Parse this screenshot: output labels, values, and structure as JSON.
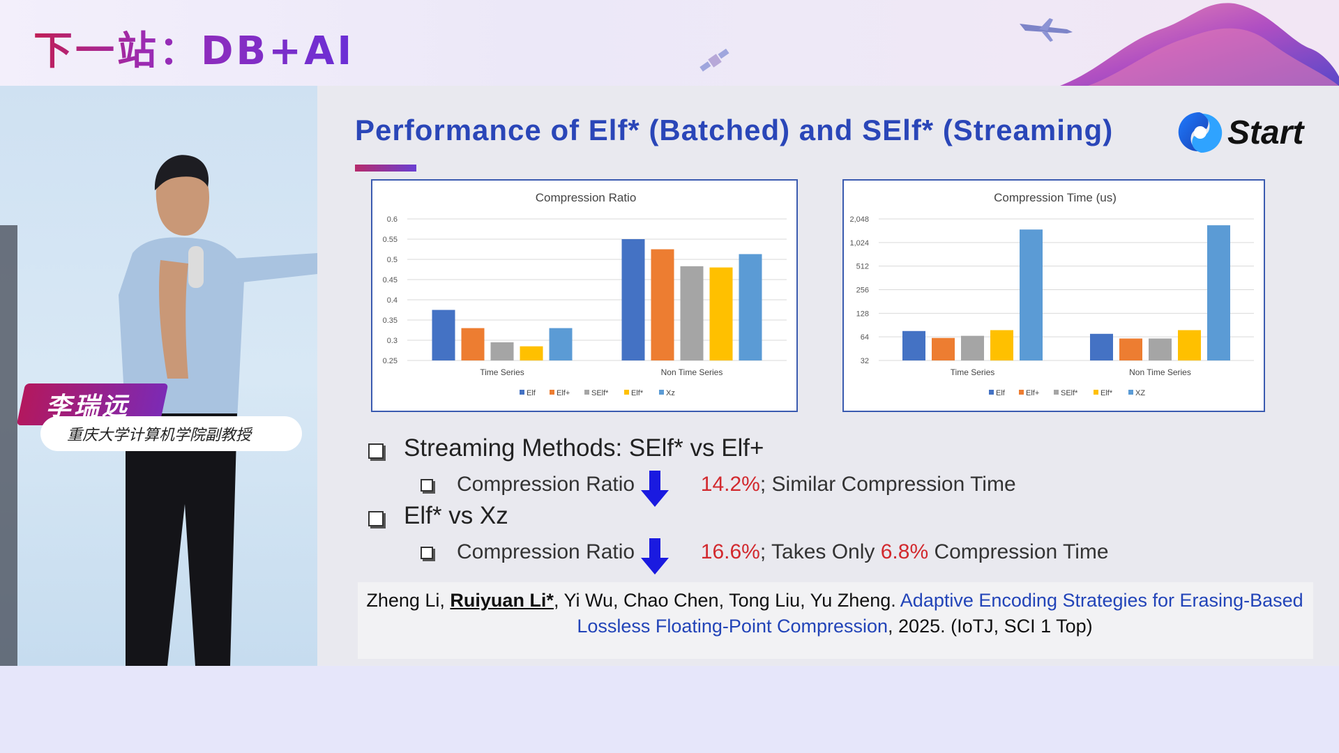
{
  "banner": {
    "title": "下一站：DB+AI"
  },
  "speaker": {
    "name": "李瑞远",
    "title": "重庆大学计算机学院副教授"
  },
  "slide": {
    "title": "Performance of Elf* (Batched) and SElf* (Streaming)",
    "logo_text": "Start",
    "colors": {
      "elf": "#4472c4",
      "elf_plus": "#ed7d31",
      "self_star": "#a5a5a5",
      "elf_star": "#ffc000",
      "xz": "#5b9bd5"
    },
    "bullets": [
      {
        "text": "Streaming Methods: SElf* vs Elf+"
      },
      {
        "prefix": "Compression Ratio",
        "value": "14.2%",
        "suffix": "; Similar Compression Time"
      },
      {
        "text": "Elf* vs Xz"
      },
      {
        "prefix": "Compression Ratio",
        "value": "16.6%",
        "mid": "; Takes Only ",
        "value2": "6.8%",
        "suffix": " Compression Time"
      }
    ],
    "citation": {
      "authors_a": "Zheng Li, ",
      "author_bold": "Ruiyuan Li*",
      "authors_b": ", Yi Wu, Chao Chen, Tong Liu, Yu Zheng. ",
      "paper_a": "Adaptive Encoding Strategies for Erasing-Based",
      "paper_b": "Lossless Floating-Point Compression",
      "tail": ", 2025. (IoTJ, SCI 1 Top)"
    }
  },
  "chart_data": [
    {
      "type": "bar",
      "title": "Compression Ratio",
      "categories": [
        "Time Series",
        "Non Time Series"
      ],
      "ylim": [
        0.25,
        0.6
      ],
      "yticks": [
        "0.6",
        "0.55",
        "0.5",
        "0.45",
        "0.4",
        "0.35",
        "0.3",
        "0.25"
      ],
      "series": [
        {
          "name": "Elf",
          "values": [
            0.375,
            0.55
          ]
        },
        {
          "name": "Elf+",
          "values": [
            0.33,
            0.525
          ]
        },
        {
          "name": "SElf*",
          "values": [
            0.295,
            0.483
          ]
        },
        {
          "name": "Elf*",
          "values": [
            0.285,
            0.48
          ]
        },
        {
          "name": "Xz",
          "values": [
            0.33,
            0.513
          ]
        }
      ]
    },
    {
      "type": "bar",
      "title": "Compression Time (us)",
      "categories": [
        "Time Series",
        "Non Time Series"
      ],
      "yscale": "log2",
      "ylim": [
        32,
        2048
      ],
      "yticks": [
        "2,048",
        "1,024",
        "512",
        "256",
        "128",
        "64",
        "32"
      ],
      "series": [
        {
          "name": "Elf",
          "values": [
            76,
            70
          ]
        },
        {
          "name": "Elf+",
          "values": [
            62,
            61
          ]
        },
        {
          "name": "SElf*",
          "values": [
            66,
            61
          ]
        },
        {
          "name": "Elf*",
          "values": [
            78,
            78
          ]
        },
        {
          "name": "XZ",
          "values": [
            1500,
            1700
          ]
        }
      ]
    }
  ]
}
